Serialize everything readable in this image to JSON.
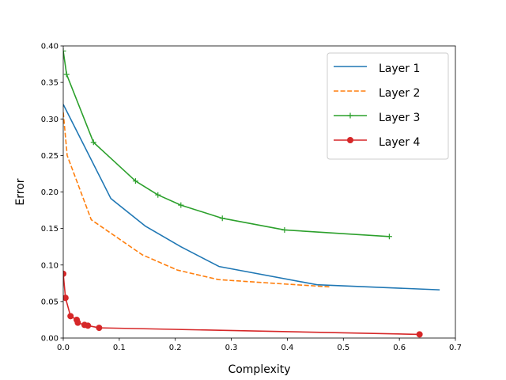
{
  "chart_data": {
    "type": "line",
    "xlabel": "Complexity",
    "ylabel": "Error",
    "xlim": [
      0,
      0.7
    ],
    "ylim": [
      0,
      0.4
    ],
    "xticks": [
      "0.0",
      "0.1",
      "0.2",
      "0.3",
      "0.4",
      "0.5",
      "0.6",
      "0.7"
    ],
    "yticks": [
      "0.00",
      "0.05",
      "0.10",
      "0.15",
      "0.20",
      "0.25",
      "0.30",
      "0.35",
      "0.40"
    ],
    "grid": false,
    "legend_position": "top-right",
    "series": [
      {
        "name": "Layer 1",
        "color": "#1f77b4",
        "line_style": "solid",
        "marker": "none",
        "points": [
          [
            0.0,
            0.32
          ],
          [
            0.085,
            0.191
          ],
          [
            0.147,
            0.153
          ],
          [
            0.21,
            0.125
          ],
          [
            0.278,
            0.098
          ],
          [
            0.453,
            0.073
          ],
          [
            0.672,
            0.066
          ]
        ]
      },
      {
        "name": "Layer 2",
        "color": "#ff7f0e",
        "line_style": "dashed",
        "marker": "none",
        "points": [
          [
            0.0,
            0.309
          ],
          [
            0.007,
            0.25
          ],
          [
            0.05,
            0.162
          ],
          [
            0.141,
            0.114
          ],
          [
            0.204,
            0.093
          ],
          [
            0.277,
            0.08
          ],
          [
            0.395,
            0.074
          ],
          [
            0.477,
            0.07
          ]
        ]
      },
      {
        "name": "Layer 3",
        "color": "#2ca02c",
        "line_style": "solid",
        "marker": "plus",
        "points": [
          [
            0.0,
            0.393
          ],
          [
            0.006,
            0.361
          ],
          [
            0.054,
            0.268
          ],
          [
            0.129,
            0.215
          ],
          [
            0.169,
            0.196
          ],
          [
            0.21,
            0.182
          ],
          [
            0.284,
            0.164
          ],
          [
            0.395,
            0.148
          ],
          [
            0.582,
            0.139
          ]
        ]
      },
      {
        "name": "Layer 4",
        "color": "#d62728",
        "line_style": "solid",
        "marker": "circle",
        "points": [
          [
            0.0,
            0.088
          ],
          [
            0.004,
            0.055
          ],
          [
            0.013,
            0.03
          ],
          [
            0.024,
            0.025
          ],
          [
            0.026,
            0.021
          ],
          [
            0.038,
            0.018
          ],
          [
            0.044,
            0.017
          ],
          [
            0.064,
            0.014
          ],
          [
            0.636,
            0.005
          ]
        ]
      }
    ]
  }
}
